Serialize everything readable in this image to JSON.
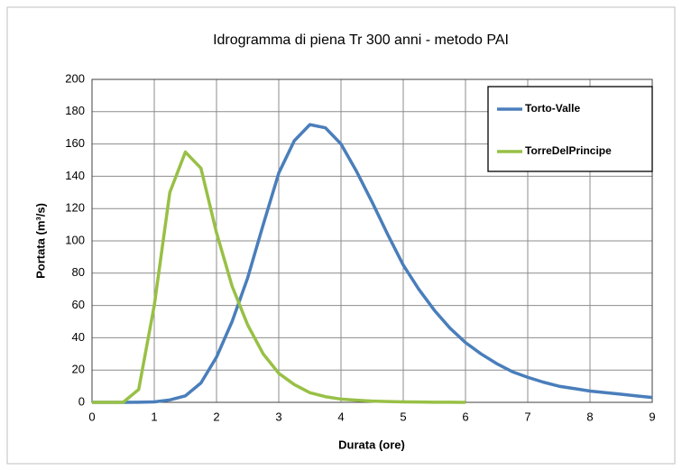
{
  "chart_data": {
    "type": "line",
    "title": "Idrogramma di piena Tr 300 anni  - metodo PAI",
    "x_label": "Durata (ore)",
    "y_label": "Portata (m³/s)",
    "x": [
      0,
      0.25,
      0.5,
      0.75,
      1,
      1.25,
      1.5,
      1.75,
      2,
      2.25,
      2.5,
      2.75,
      3,
      3.25,
      3.5,
      3.75,
      4,
      4.25,
      4.5,
      4.75,
      5,
      5.25,
      5.5,
      5.75,
      6,
      6.25,
      6.5,
      6.75,
      7,
      7.25,
      7.5,
      7.75,
      8,
      8.25,
      8.5,
      8.75,
      9
    ],
    "series": [
      {
        "name": "Torto-Valle",
        "color": "#4a7ebb",
        "values": [
          0,
          0,
          0,
          0.1,
          0.3,
          1.5,
          4,
          12,
          28,
          50,
          77,
          110,
          142,
          162,
          172,
          170,
          160,
          143,
          124,
          104,
          85,
          70,
          57,
          46,
          37,
          30,
          24,
          19,
          15.5,
          12.5,
          10,
          8.5,
          7,
          6,
          5,
          4,
          3
        ]
      },
      {
        "name": "TorreDelPrincipe",
        "color": "#98c046",
        "values": [
          0,
          0,
          0,
          8,
          60,
          130,
          155,
          145,
          105,
          72,
          48,
          30,
          18,
          11,
          6,
          3.5,
          2,
          1.3,
          0.8,
          0.5,
          0.3,
          0.2,
          0.1,
          0.05,
          0,
          null,
          null,
          null,
          null,
          null,
          null,
          null,
          null,
          null,
          null,
          null,
          null
        ]
      }
    ],
    "xlim": [
      0,
      9
    ],
    "xticks": [
      0,
      1,
      2,
      3,
      4,
      5,
      6,
      7,
      8,
      9
    ],
    "ylim": [
      0,
      200
    ],
    "yticks": [
      0,
      20,
      40,
      60,
      80,
      100,
      120,
      140,
      160,
      180,
      200
    ],
    "grid": true,
    "legend": "top-right"
  }
}
